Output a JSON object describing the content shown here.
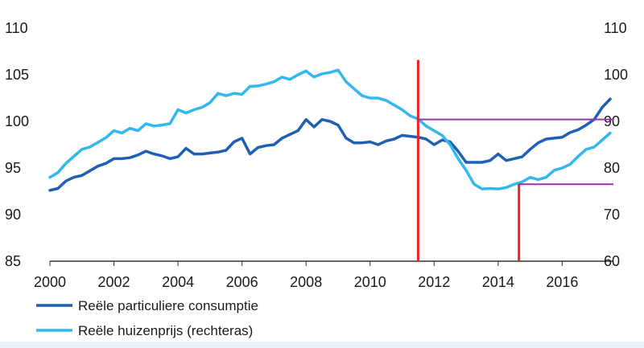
{
  "chart_data": {
    "type": "line",
    "title": "",
    "xlabel": "",
    "ylabel": "",
    "xlim": [
      2000,
      2017.6
    ],
    "ylim_left": [
      85,
      110
    ],
    "ylim_right": [
      60,
      110
    ],
    "x_ticks": [
      "2000",
      "2002",
      "2004",
      "2006",
      "2008",
      "2010",
      "2012",
      "2014",
      "2016"
    ],
    "y_ticks_left": [
      "85",
      "90",
      "95",
      "100",
      "105",
      "110"
    ],
    "y_ticks_right": [
      "60",
      "70",
      "80",
      "90",
      "100",
      "110"
    ],
    "grid": false,
    "legend_position": "bottom-left",
    "series": [
      {
        "name": "Reële particuliere consumptie",
        "axis": "left",
        "color": "#1f5fb4",
        "points": [
          [
            2000.0,
            92.6
          ],
          [
            2000.25,
            92.8
          ],
          [
            2000.5,
            93.6
          ],
          [
            2000.75,
            94.0
          ],
          [
            2001.0,
            94.2
          ],
          [
            2001.25,
            94.7
          ],
          [
            2001.5,
            95.2
          ],
          [
            2001.75,
            95.5
          ],
          [
            2002.0,
            96.0
          ],
          [
            2002.25,
            96.0
          ],
          [
            2002.5,
            96.1
          ],
          [
            2002.75,
            96.4
          ],
          [
            2003.0,
            96.8
          ],
          [
            2003.25,
            96.5
          ],
          [
            2003.5,
            96.3
          ],
          [
            2003.75,
            96.0
          ],
          [
            2004.0,
            96.2
          ],
          [
            2004.25,
            97.1
          ],
          [
            2004.5,
            96.5
          ],
          [
            2004.75,
            96.5
          ],
          [
            2005.0,
            96.6
          ],
          [
            2005.25,
            96.7
          ],
          [
            2005.5,
            96.9
          ],
          [
            2005.75,
            97.8
          ],
          [
            2006.0,
            98.2
          ],
          [
            2006.25,
            96.5
          ],
          [
            2006.5,
            97.2
          ],
          [
            2006.75,
            97.4
          ],
          [
            2007.0,
            97.5
          ],
          [
            2007.25,
            98.2
          ],
          [
            2007.5,
            98.6
          ],
          [
            2007.75,
            99.0
          ],
          [
            2008.0,
            100.2
          ],
          [
            2008.25,
            99.4
          ],
          [
            2008.5,
            100.2
          ],
          [
            2008.75,
            100.0
          ],
          [
            2009.0,
            99.6
          ],
          [
            2009.25,
            98.2
          ],
          [
            2009.5,
            97.7
          ],
          [
            2009.75,
            97.7
          ],
          [
            2010.0,
            97.8
          ],
          [
            2010.25,
            97.5
          ],
          [
            2010.5,
            97.9
          ],
          [
            2010.75,
            98.1
          ],
          [
            2011.0,
            98.5
          ],
          [
            2011.25,
            98.4
          ],
          [
            2011.5,
            98.3
          ],
          [
            2011.75,
            98.1
          ],
          [
            2012.0,
            97.5
          ],
          [
            2012.25,
            98.0
          ],
          [
            2012.5,
            97.8
          ],
          [
            2012.75,
            96.8
          ],
          [
            2013.0,
            95.6
          ],
          [
            2013.25,
            95.6
          ],
          [
            2013.5,
            95.6
          ],
          [
            2013.75,
            95.8
          ],
          [
            2014.0,
            96.5
          ],
          [
            2014.25,
            95.8
          ],
          [
            2014.5,
            96.0
          ],
          [
            2014.75,
            96.2
          ],
          [
            2015.0,
            97.0
          ],
          [
            2015.25,
            97.7
          ],
          [
            2015.5,
            98.1
          ],
          [
            2015.75,
            98.2
          ],
          [
            2016.0,
            98.3
          ],
          [
            2016.25,
            98.8
          ],
          [
            2016.5,
            99.1
          ],
          [
            2016.75,
            99.6
          ],
          [
            2017.0,
            100.2
          ],
          [
            2017.25,
            101.5
          ],
          [
            2017.5,
            102.4
          ]
        ]
      },
      {
        "name": "Reële huizenprijs (rechteras)",
        "axis": "right",
        "color": "#33b8ee",
        "points": [
          [
            2000.0,
            78.0
          ],
          [
            2000.25,
            79.0
          ],
          [
            2000.5,
            81.0
          ],
          [
            2000.75,
            82.5
          ],
          [
            2001.0,
            84.0
          ],
          [
            2001.25,
            84.5
          ],
          [
            2001.5,
            85.5
          ],
          [
            2001.75,
            86.5
          ],
          [
            2002.0,
            88.0
          ],
          [
            2002.25,
            87.5
          ],
          [
            2002.5,
            88.5
          ],
          [
            2002.75,
            88.0
          ],
          [
            2003.0,
            89.5
          ],
          [
            2003.25,
            89.0
          ],
          [
            2003.5,
            89.2
          ],
          [
            2003.75,
            89.5
          ],
          [
            2004.0,
            92.5
          ],
          [
            2004.25,
            91.8
          ],
          [
            2004.5,
            92.5
          ],
          [
            2004.75,
            93.0
          ],
          [
            2005.0,
            94.0
          ],
          [
            2005.25,
            96.0
          ],
          [
            2005.5,
            95.5
          ],
          [
            2005.75,
            96.0
          ],
          [
            2006.0,
            95.8
          ],
          [
            2006.25,
            97.5
          ],
          [
            2006.5,
            97.6
          ],
          [
            2006.75,
            98.0
          ],
          [
            2007.0,
            98.5
          ],
          [
            2007.25,
            99.5
          ],
          [
            2007.5,
            99.0
          ],
          [
            2007.75,
            100.0
          ],
          [
            2008.0,
            100.8
          ],
          [
            2008.25,
            99.5
          ],
          [
            2008.5,
            100.2
          ],
          [
            2008.75,
            100.5
          ],
          [
            2009.0,
            101.0
          ],
          [
            2009.25,
            98.5
          ],
          [
            2009.5,
            97.0
          ],
          [
            2009.75,
            95.5
          ],
          [
            2010.0,
            95.0
          ],
          [
            2010.25,
            95.0
          ],
          [
            2010.5,
            94.5
          ],
          [
            2010.75,
            93.5
          ],
          [
            2011.0,
            92.5
          ],
          [
            2011.25,
            91.2
          ],
          [
            2011.5,
            90.5
          ],
          [
            2011.75,
            89.0
          ],
          [
            2012.0,
            88.0
          ],
          [
            2012.25,
            87.0
          ],
          [
            2012.5,
            85.0
          ],
          [
            2012.75,
            82.0
          ],
          [
            2013.0,
            79.5
          ],
          [
            2013.25,
            76.5
          ],
          [
            2013.5,
            75.5
          ],
          [
            2013.75,
            75.6
          ],
          [
            2014.0,
            75.5
          ],
          [
            2014.25,
            75.8
          ],
          [
            2014.5,
            76.5
          ],
          [
            2014.75,
            77.0
          ],
          [
            2015.0,
            78.0
          ],
          [
            2015.25,
            77.5
          ],
          [
            2015.5,
            78.0
          ],
          [
            2015.75,
            79.5
          ],
          [
            2016.0,
            80.0
          ],
          [
            2016.25,
            80.8
          ],
          [
            2016.5,
            82.5
          ],
          [
            2016.75,
            84.0
          ],
          [
            2017.0,
            84.5
          ],
          [
            2017.25,
            86.0
          ],
          [
            2017.5,
            87.5
          ]
        ]
      }
    ],
    "annotations": [
      {
        "kind": "vertical-marker",
        "color": "#e8232a",
        "x": 2011.5,
        "from_left": 85,
        "to_left": 106.6
      },
      {
        "kind": "vertical-marker",
        "color": "#e8232a",
        "x": 2014.65,
        "from_left": 85,
        "to_left": 93.3
      },
      {
        "kind": "horizontal-marker",
        "color": "#9933aa",
        "x_from": 2011.5,
        "x_to": 2017.6,
        "axis": "right",
        "y": 90.4
      },
      {
        "kind": "horizontal-marker",
        "color": "#9933aa",
        "x_from": 2014.65,
        "x_to": 2017.6,
        "axis": "right",
        "y": 76.5
      }
    ]
  }
}
